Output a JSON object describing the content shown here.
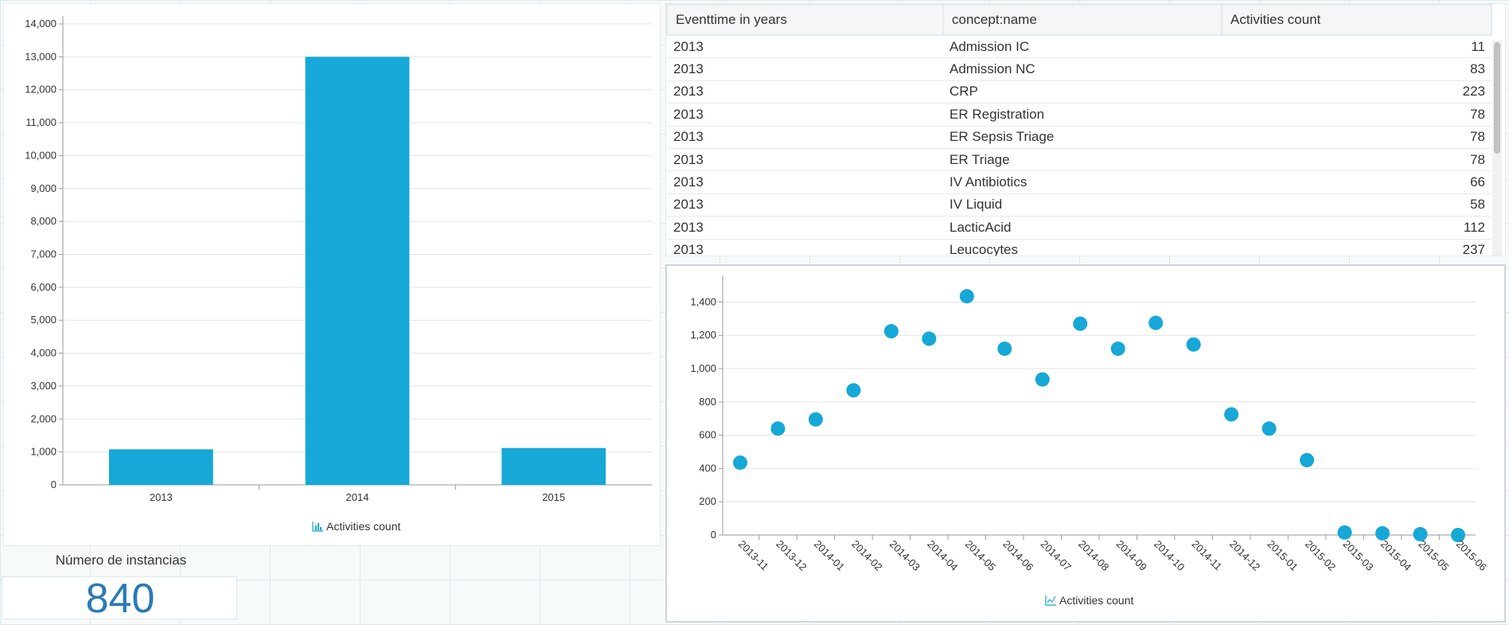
{
  "colors": {
    "series": "#16a8d6",
    "kpi": "#2a7ab5"
  },
  "bar_legend_icon": "bar-chart-icon",
  "scatter_legend_icon": "line-chart-icon",
  "chart_data": [
    {
      "type": "bar",
      "categories": [
        "2013",
        "2014",
        "2015"
      ],
      "values": [
        1080,
        13000,
        1120
      ],
      "ylim": [
        0,
        14000
      ],
      "yticks": [
        "0",
        "1,000",
        "2,000",
        "3,000",
        "4,000",
        "5,000",
        "6,000",
        "7,000",
        "8,000",
        "9,000",
        "10,000",
        "11,000",
        "12,000",
        "13,000",
        "14,000"
      ],
      "legend": "Activities count",
      "grid": true
    },
    {
      "type": "scatter",
      "categories": [
        "2013-11",
        "2013-12",
        "2014-01",
        "2014-02",
        "2014-03",
        "2014-04",
        "2014-05",
        "2014-06",
        "2014-07",
        "2014-08",
        "2014-09",
        "2014-10",
        "2014-11",
        "2014-12",
        "2015-01",
        "2015-02",
        "2015-03",
        "2015-04",
        "2015-05",
        "2015-06"
      ],
      "values": [
        435,
        640,
        695,
        870,
        1225,
        1180,
        1435,
        1120,
        935,
        1270,
        1120,
        1275,
        1145,
        725,
        640,
        450,
        15,
        10,
        5,
        0
      ],
      "ylim": [
        0,
        1560
      ],
      "yticks": [
        "0",
        "200",
        "400",
        "600",
        "800",
        "1,000",
        "1,200",
        "1,400"
      ],
      "legend": "Activities count",
      "grid": true
    }
  ],
  "table": {
    "headers": [
      "Eventtime in years",
      "concept:name",
      "Activities count"
    ],
    "rows": [
      [
        "2013",
        "Admission IC",
        "11"
      ],
      [
        "2013",
        "Admission NC",
        "83"
      ],
      [
        "2013",
        "CRP",
        "223"
      ],
      [
        "2013",
        "ER Registration",
        "78"
      ],
      [
        "2013",
        "ER Sepsis Triage",
        "78"
      ],
      [
        "2013",
        "ER Triage",
        "78"
      ],
      [
        "2013",
        "IV Antibiotics",
        "66"
      ],
      [
        "2013",
        "IV Liquid",
        "58"
      ],
      [
        "2013",
        "LacticAcid",
        "112"
      ],
      [
        "2013",
        "Leucocytes",
        "237"
      ]
    ]
  },
  "kpi": {
    "label": "Número de instancias",
    "value": "840"
  }
}
